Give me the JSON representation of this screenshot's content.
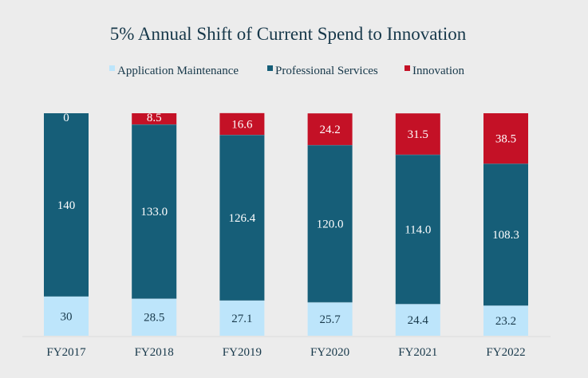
{
  "chart_data": {
    "type": "bar",
    "stacked": true,
    "title": "5% Annual Shift of Current Spend to Innovation",
    "categories": [
      "FY2017",
      "FY2018",
      "FY2019",
      "FY2020",
      "FY2021",
      "FY2022"
    ],
    "series": [
      {
        "name": "Application Maintenance",
        "color": "#bde5fb",
        "label_color": "#17384a",
        "values": [
          30,
          28.5,
          27.1,
          25.7,
          24.4,
          23.2
        ],
        "labels": [
          "30",
          "28.5",
          "27.1",
          "25.7",
          "24.4",
          "23.2"
        ]
      },
      {
        "name": "Professional Services",
        "color": "#165e78",
        "label_color": "#ffffff",
        "values": [
          140,
          133.0,
          126.4,
          120.0,
          114.0,
          108.3
        ],
        "labels": [
          "140",
          "133.0",
          "126.4",
          "120.0",
          "114.0",
          "108.3"
        ]
      },
      {
        "name": "Innovation",
        "color": "#c41126",
        "label_color": "#ffffff",
        "values": [
          0,
          8.5,
          16.6,
          24.2,
          31.5,
          38.5
        ],
        "labels": [
          "0",
          "8.5",
          "16.6",
          "24.2",
          "31.5",
          "38.5"
        ]
      }
    ],
    "ylim": [
      0,
      170
    ],
    "grid": false,
    "legend": "top"
  }
}
